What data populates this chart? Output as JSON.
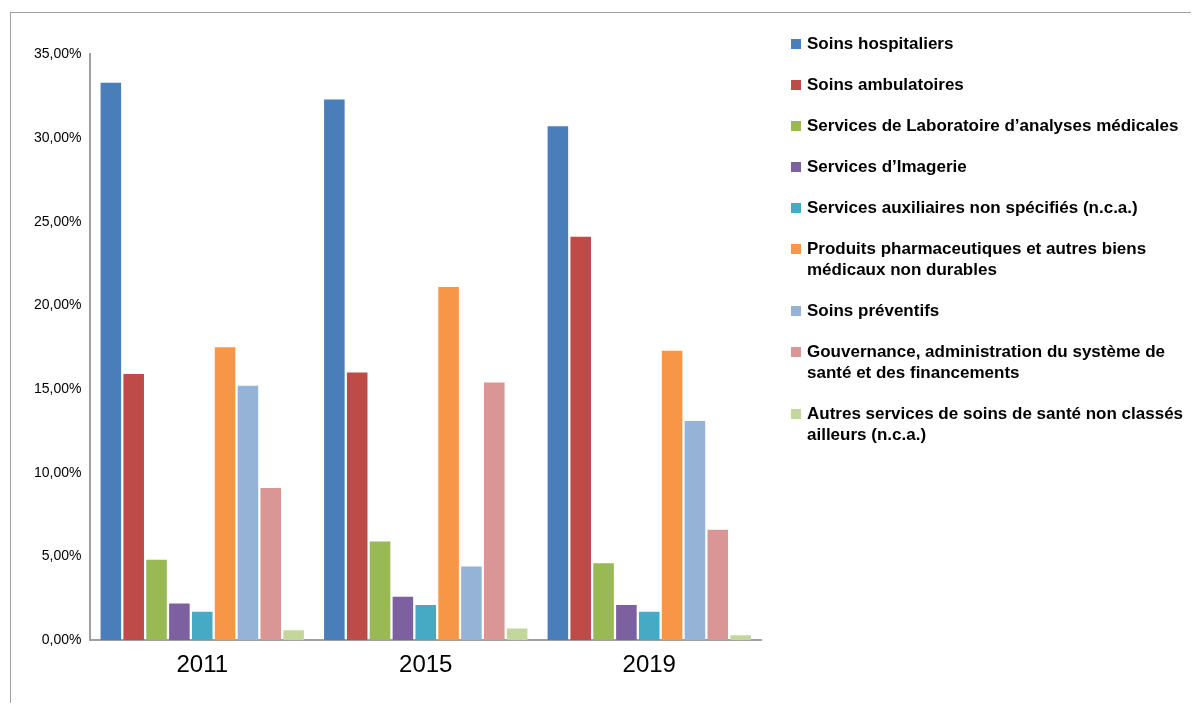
{
  "chart_data": {
    "type": "bar",
    "categories": [
      "2011",
      "2015",
      "2019"
    ],
    "series": [
      {
        "name": "Soins hospitaliers",
        "color": "#4a7ebb",
        "values": [
          33.3,
          32.3,
          30.7
        ]
      },
      {
        "name": "Soins ambulatoires",
        "color": "#be4b48",
        "values": [
          15.9,
          16.0,
          24.1
        ]
      },
      {
        "name": "Services de Laboratoire d’analyses médicales",
        "color": "#98b954",
        "values": [
          4.8,
          5.9,
          4.6
        ]
      },
      {
        "name": "Services d’Imagerie",
        "color": "#7d60a0",
        "values": [
          2.2,
          2.6,
          2.1
        ]
      },
      {
        "name": "Services auxiliaires non spécifiés (n.c.a.)",
        "color": "#46aac5",
        "values": [
          1.7,
          2.1,
          1.7
        ]
      },
      {
        "name": "Produits pharmaceutiques et autres biens médicaux non durables",
        "color": "#f79646",
        "values": [
          17.5,
          21.1,
          17.3
        ]
      },
      {
        "name": "Soins préventifs",
        "color": "#95b3d7",
        "values": [
          15.2,
          4.4,
          13.1
        ]
      },
      {
        "name": "Gouvernance, administration du système de santé et des financements",
        "color": "#d99694",
        "values": [
          9.1,
          15.4,
          6.6
        ]
      },
      {
        "name": "Autres services de soins de santé non classés ailleurs (n.c.a.)",
        "color": "#c3d69b",
        "values": [
          0.6,
          0.7,
          0.3
        ]
      }
    ],
    "ylim": [
      0,
      35
    ],
    "yticks": [
      {
        "value": 0,
        "label": "0,00%"
      },
      {
        "value": 5,
        "label": "5,00%"
      },
      {
        "value": 10,
        "label": "10,00%"
      },
      {
        "value": 15,
        "label": "15,00%"
      },
      {
        "value": 20,
        "label": "20,00%"
      },
      {
        "value": 25,
        "label": "25,00%"
      },
      {
        "value": 30,
        "label": "30,00%"
      },
      {
        "value": 35,
        "label": "35,00%"
      }
    ],
    "grid": false,
    "legend": "right"
  }
}
